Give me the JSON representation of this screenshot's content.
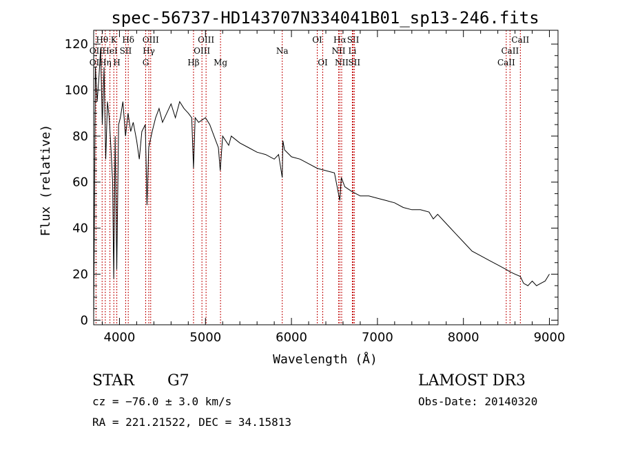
{
  "chart_data": {
    "type": "line",
    "title": "spec-56737-HD143707N334041B01_sp13-246.fits",
    "xlabel": "Wavelength (Å)",
    "ylabel": "Flux (relative)",
    "xlim": [
      3700,
      9100
    ],
    "ylim": [
      -2,
      126
    ],
    "x_ticks": [
      4000,
      5000,
      6000,
      7000,
      8000,
      9000
    ],
    "y_ticks": [
      0,
      20,
      40,
      60,
      80,
      100,
      120
    ],
    "grid": false,
    "series": [
      {
        "x": [
          3700,
          3720,
          3740,
          3760,
          3780,
          3800,
          3820,
          3840,
          3860,
          3880,
          3900,
          3920,
          3933,
          3950,
          3968,
          3990,
          4010,
          4040,
          4070,
          4100,
          4130,
          4160,
          4200,
          4230,
          4260,
          4300,
          4320,
          4340,
          4380,
          4420,
          4460,
          4500,
          4550,
          4600,
          4650,
          4700,
          4750,
          4800,
          4840,
          4861,
          4880,
          4920,
          4960,
          5000,
          5050,
          5100,
          5150,
          5172,
          5200,
          5270,
          5300,
          5400,
          5500,
          5600,
          5700,
          5800,
          5850,
          5893,
          5900,
          5920,
          6000,
          6100,
          6200,
          6300,
          6400,
          6500,
          6563,
          6580,
          6620,
          6700,
          6800,
          6900,
          7000,
          7100,
          7200,
          7300,
          7400,
          7500,
          7600,
          7650,
          7700,
          7800,
          7850,
          7900,
          8000,
          8100,
          8200,
          8300,
          8400,
          8500,
          8542,
          8600,
          8662,
          8700,
          8750,
          8800,
          8850,
          8900,
          8950,
          9000
        ],
        "y": [
          0,
          110,
          95,
          105,
          118,
          85,
          110,
          70,
          95,
          88,
          75,
          60,
          18,
          80,
          22,
          85,
          88,
          95,
          80,
          90,
          82,
          86,
          78,
          70,
          82,
          85,
          50,
          75,
          82,
          88,
          92,
          86,
          90,
          94,
          88,
          95,
          92,
          90,
          88,
          66,
          88,
          86,
          87,
          88,
          85,
          80,
          75,
          65,
          80,
          76,
          80,
          77,
          75,
          73,
          72,
          70,
          72,
          62,
          78,
          74,
          71,
          70,
          68,
          66,
          65,
          64,
          52,
          62,
          58,
          56,
          54,
          54,
          53,
          52,
          51,
          49,
          48,
          48,
          47,
          44,
          46,
          42,
          40,
          38,
          34,
          30,
          28,
          26,
          24,
          22,
          21,
          20,
          19,
          16,
          15,
          17,
          15,
          16,
          17,
          20
        ]
      }
    ],
    "line_markers": [
      {
        "label": "Hθ",
        "x": 3798,
        "row": 1
      },
      {
        "label": "K",
        "x": 3934,
        "row": 1
      },
      {
        "label": "Hδ",
        "x": 4102,
        "row": 1
      },
      {
        "label": "OIII",
        "x": 4363,
        "row": 1
      },
      {
        "label": "OIII",
        "x": 5007,
        "row": 1
      },
      {
        "label": "OI",
        "x": 6300,
        "row": 1
      },
      {
        "label": "Hα",
        "x": 6563,
        "row": 1
      },
      {
        "label": "SII",
        "x": 6717,
        "row": 1
      },
      {
        "label": "CaII",
        "x": 8662,
        "row": 1
      },
      {
        "label": "OII",
        "x": 3727,
        "row": 2
      },
      {
        "label": "HeI",
        "x": 3889,
        "row": 2
      },
      {
        "label": "SII",
        "x": 4072,
        "row": 2
      },
      {
        "label": "Hγ",
        "x": 4341,
        "row": 2
      },
      {
        "label": "OIII",
        "x": 4959,
        "row": 2
      },
      {
        "label": "Na",
        "x": 5893,
        "row": 2
      },
      {
        "label": "NII",
        "x": 6548,
        "row": 2
      },
      {
        "label": "Li",
        "x": 6708,
        "row": 2
      },
      {
        "label": "CaII",
        "x": 8542,
        "row": 2
      },
      {
        "label": "OII",
        "x": 3727,
        "row": 3
      },
      {
        "label": "Hη",
        "x": 3835,
        "row": 3
      },
      {
        "label": "H",
        "x": 3969,
        "row": 3
      },
      {
        "label": "G",
        "x": 4305,
        "row": 3
      },
      {
        "label": "Hβ",
        "x": 4861,
        "row": 3
      },
      {
        "label": "Mg",
        "x": 5175,
        "row": 3
      },
      {
        "label": "OI",
        "x": 6364,
        "row": 3
      },
      {
        "label": "NII",
        "x": 6584,
        "row": 3
      },
      {
        "label": "SII",
        "x": 6731,
        "row": 3
      },
      {
        "label": "CaII",
        "x": 8498,
        "row": 3
      }
    ]
  },
  "info": {
    "object_class": "STAR",
    "subclass": "G7",
    "survey": "LAMOST DR3",
    "cz": "cz = −76.0 ± 3.0 km/s",
    "obs_date": "Obs-Date: 20140320",
    "coords": "RA = 221.21522, DEC =  34.15813"
  },
  "colors": {
    "spectrum": "#000000",
    "marker_line": "#c00000",
    "axis": "#000000",
    "background": "#ffffff"
  }
}
